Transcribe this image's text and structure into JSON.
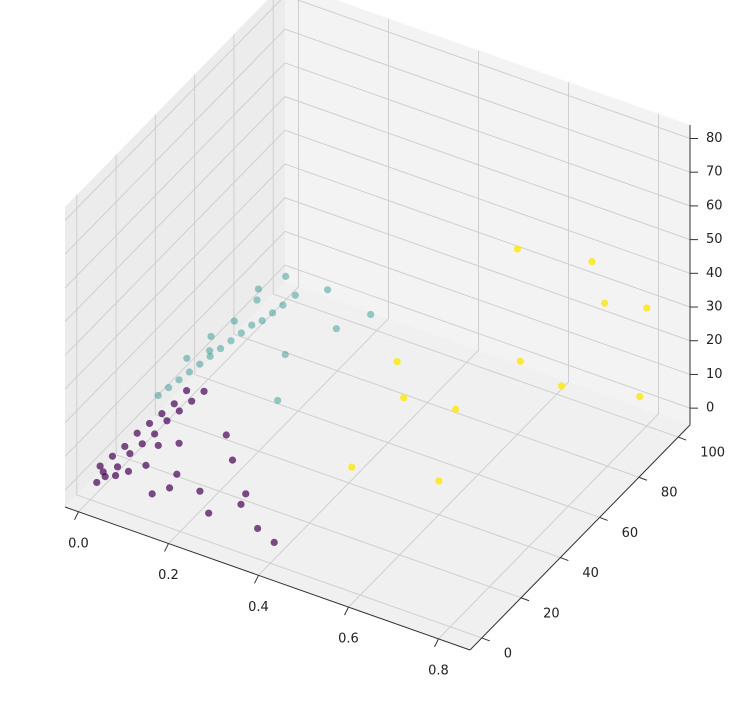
{
  "chart_data": {
    "type": "scatter3d",
    "xlim": [
      -0.03,
      0.87
    ],
    "ylim": [
      -6,
      106
    ],
    "zlim": [
      -5,
      84
    ],
    "xticks": [
      {
        "value": 0,
        "label": "0.0"
      },
      0.2,
      0.4,
      0.6,
      0.8
    ],
    "yticks": [
      0,
      20,
      40,
      60,
      80,
      100
    ],
    "zticks": [
      0,
      10,
      20,
      30,
      40,
      50,
      60,
      70,
      80
    ],
    "grid": true,
    "series": [
      {
        "color": "#440154",
        "x": [
          0.01,
          0.02,
          0.0,
          0.03,
          0.01,
          0.04,
          0.02,
          0.05,
          0.03,
          0.06,
          0.04,
          0.07,
          0.05,
          0.08,
          0.06,
          0.09,
          0.07,
          0.1,
          0.08,
          0.11,
          0.02,
          0.05,
          0.03,
          0.09,
          0.12,
          0.15,
          0.2,
          0.25,
          0.3,
          0.35,
          0.22,
          0.28,
          0.18,
          0.4,
          0.14
        ],
        "y": [
          1,
          3,
          5,
          7,
          9,
          11,
          13,
          15,
          17,
          19,
          21,
          23,
          25,
          27,
          29,
          31,
          33,
          35,
          10,
          20,
          2,
          8,
          6,
          14,
          4,
          6,
          10,
          3,
          8,
          5,
          22,
          15,
          28,
          2,
          12
        ],
        "z": [
          0,
          1,
          2,
          2,
          3,
          4,
          4,
          5,
          6,
          6,
          7,
          8,
          8,
          9,
          9,
          10,
          11,
          11,
          3,
          5,
          3,
          1,
          0,
          7,
          0,
          2,
          1,
          1,
          3,
          0,
          4,
          1,
          6,
          0,
          2
        ]
      },
      {
        "color": "#21918c",
        "x": [
          0.02,
          0.03,
          0.04,
          0.05,
          0.06,
          0.07,
          0.08,
          0.09,
          0.1,
          0.11,
          0.12,
          0.13,
          0.14,
          0.15,
          0.05,
          0.08,
          0.1,
          0.04,
          0.12,
          0.2,
          0.25,
          0.18,
          0.3,
          0.22,
          0.06,
          0.09
        ],
        "y": [
          30,
          33,
          36,
          39,
          42,
          45,
          48,
          51,
          54,
          57,
          60,
          63,
          66,
          70,
          50,
          55,
          62,
          40,
          72,
          75,
          68,
          58,
          74,
          45,
          47,
          65
        ],
        "z": [
          9,
          10,
          11,
          12,
          13,
          14,
          15,
          16,
          17,
          18,
          18,
          19,
          20,
          21,
          16,
          19,
          22,
          15,
          24,
          22,
          17,
          12,
          20,
          8,
          14,
          23
        ]
      },
      {
        "color": "#fde725",
        "x": [
          0.6,
          0.7,
          0.75,
          0.8,
          0.65,
          0.5,
          0.45,
          0.55,
          0.6,
          0.85,
          0.72,
          0.42
        ],
        "y": [
          80,
          95,
          90,
          100,
          70,
          45,
          30,
          60,
          40,
          85,
          75,
          60
        ],
        "z": [
          50,
          42,
          35,
          30,
          25,
          22,
          8,
          12,
          5,
          15,
          18,
          20
        ]
      }
    ]
  }
}
